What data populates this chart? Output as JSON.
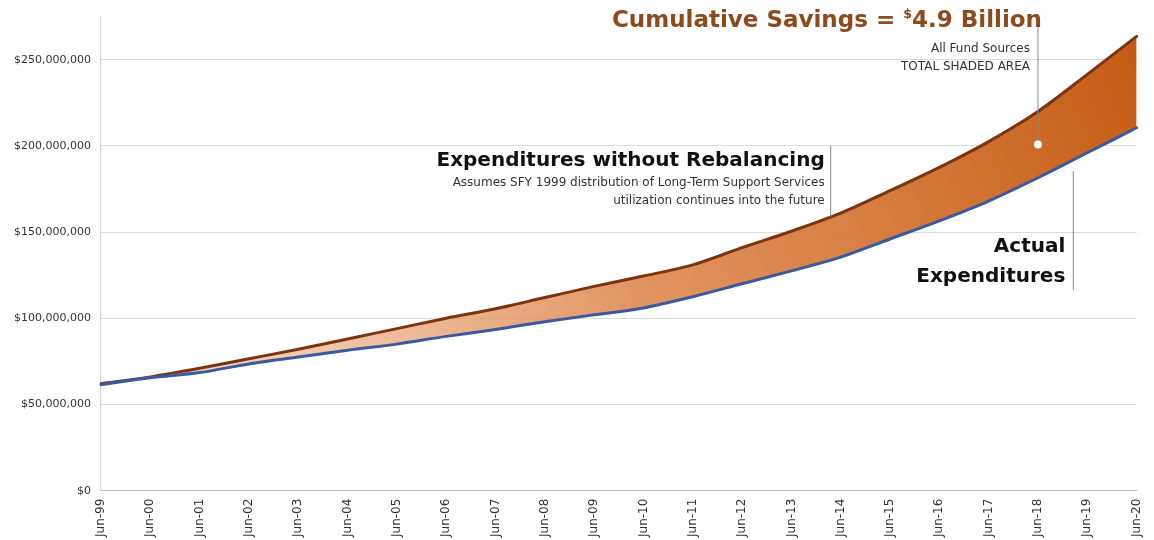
{
  "chart_data": {
    "type": "line",
    "title": "Cumulative Savings = $^{$}$4.9 Billion",
    "subtitle": "All Fund Sources",
    "categories": [
      "Jun-99",
      "Jun-00",
      "Jun-01",
      "Jun-02",
      "Jun-03",
      "Jun-04",
      "Jun-05",
      "Jun-06",
      "Jun-07",
      "Jun-08",
      "Jun-09",
      "Jun-10",
      "Jun-11",
      "Jun-12",
      "Jun-13",
      "Jun-14",
      "Jun-15",
      "Jun-16",
      "Jun-17",
      "Jun-18",
      "Jun-19",
      "Jun-20"
    ],
    "series": [
      {
        "name": "Expenditures without Rebalancing",
        "type": "area",
        "color": "#7a3510",
        "values": [
          62000000,
          66000000,
          71000000,
          76500000,
          82000000,
          88000000,
          94000000,
          100000000,
          105500000,
          112000000,
          118500000,
          124500000,
          131000000,
          141000000,
          150500000,
          161000000,
          174000000,
          187500000,
          202500000,
          220000000,
          241500000,
          263500000
        ]
      },
      {
        "name": "Actual Expenditures",
        "color": "#3a5aa0",
        "values": [
          61500000,
          65500000,
          68500000,
          73500000,
          77500000,
          81500000,
          85000000,
          89500000,
          93500000,
          98000000,
          102000000,
          106000000,
          112500000,
          120000000,
          127500000,
          135500000,
          146000000,
          156500000,
          168000000,
          181500000,
          196000000,
          210500000
        ]
      }
    ],
    "annotations": [
      "Assumes SFY 1999 distribution of Long-Term Support Services utilization continues into the future",
      "TOTAL SHADED AREA"
    ],
    "ylim": [
      0,
      275000000
    ],
    "yticks": [
      {
        "value": 0,
        "label": "$0"
      },
      {
        "value": 50000000,
        "label": "$50,000,000"
      },
      {
        "value": 100000000,
        "label": "$100,000,000"
      },
      {
        "value": 150000000,
        "label": "$150,000,000"
      },
      {
        "value": 200000000,
        "label": "$200,000,000"
      },
      {
        "value": 250000000,
        "label": "$250,000,000"
      }
    ],
    "grid": "y",
    "legend": false,
    "marker": "none",
    "line_style": "solid"
  }
}
